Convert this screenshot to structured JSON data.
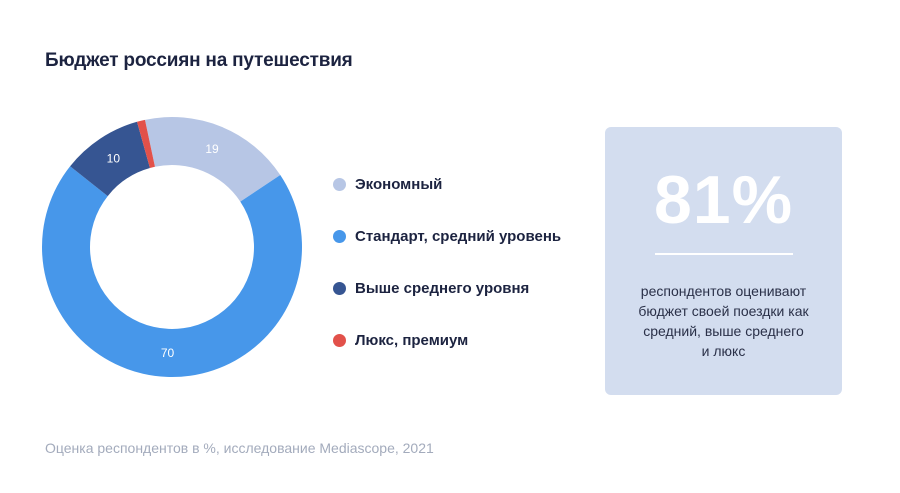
{
  "chart_data": {
    "type": "pie",
    "title": "Бюджет россиян на путешествия",
    "categories": [
      "Экономный",
      "Стандарт, средний уровень",
      "Выше среднего уровня",
      "Люкс, премиум"
    ],
    "values": [
      19,
      70,
      10,
      1
    ],
    "labels": [
      "19",
      "70",
      "10",
      ""
    ],
    "colors": [
      "#b7c6e5",
      "#4797ea",
      "#365592",
      "#e2514a"
    ],
    "legend": "right",
    "footnote": "Оценка респондентов в %, исследование Mediascope, 2021"
  },
  "card": {
    "value": "81%",
    "text": [
      "респондентов оценивают",
      "бюджет своей поездки как",
      "средний, выше среднего",
      "и люкс"
    ]
  }
}
